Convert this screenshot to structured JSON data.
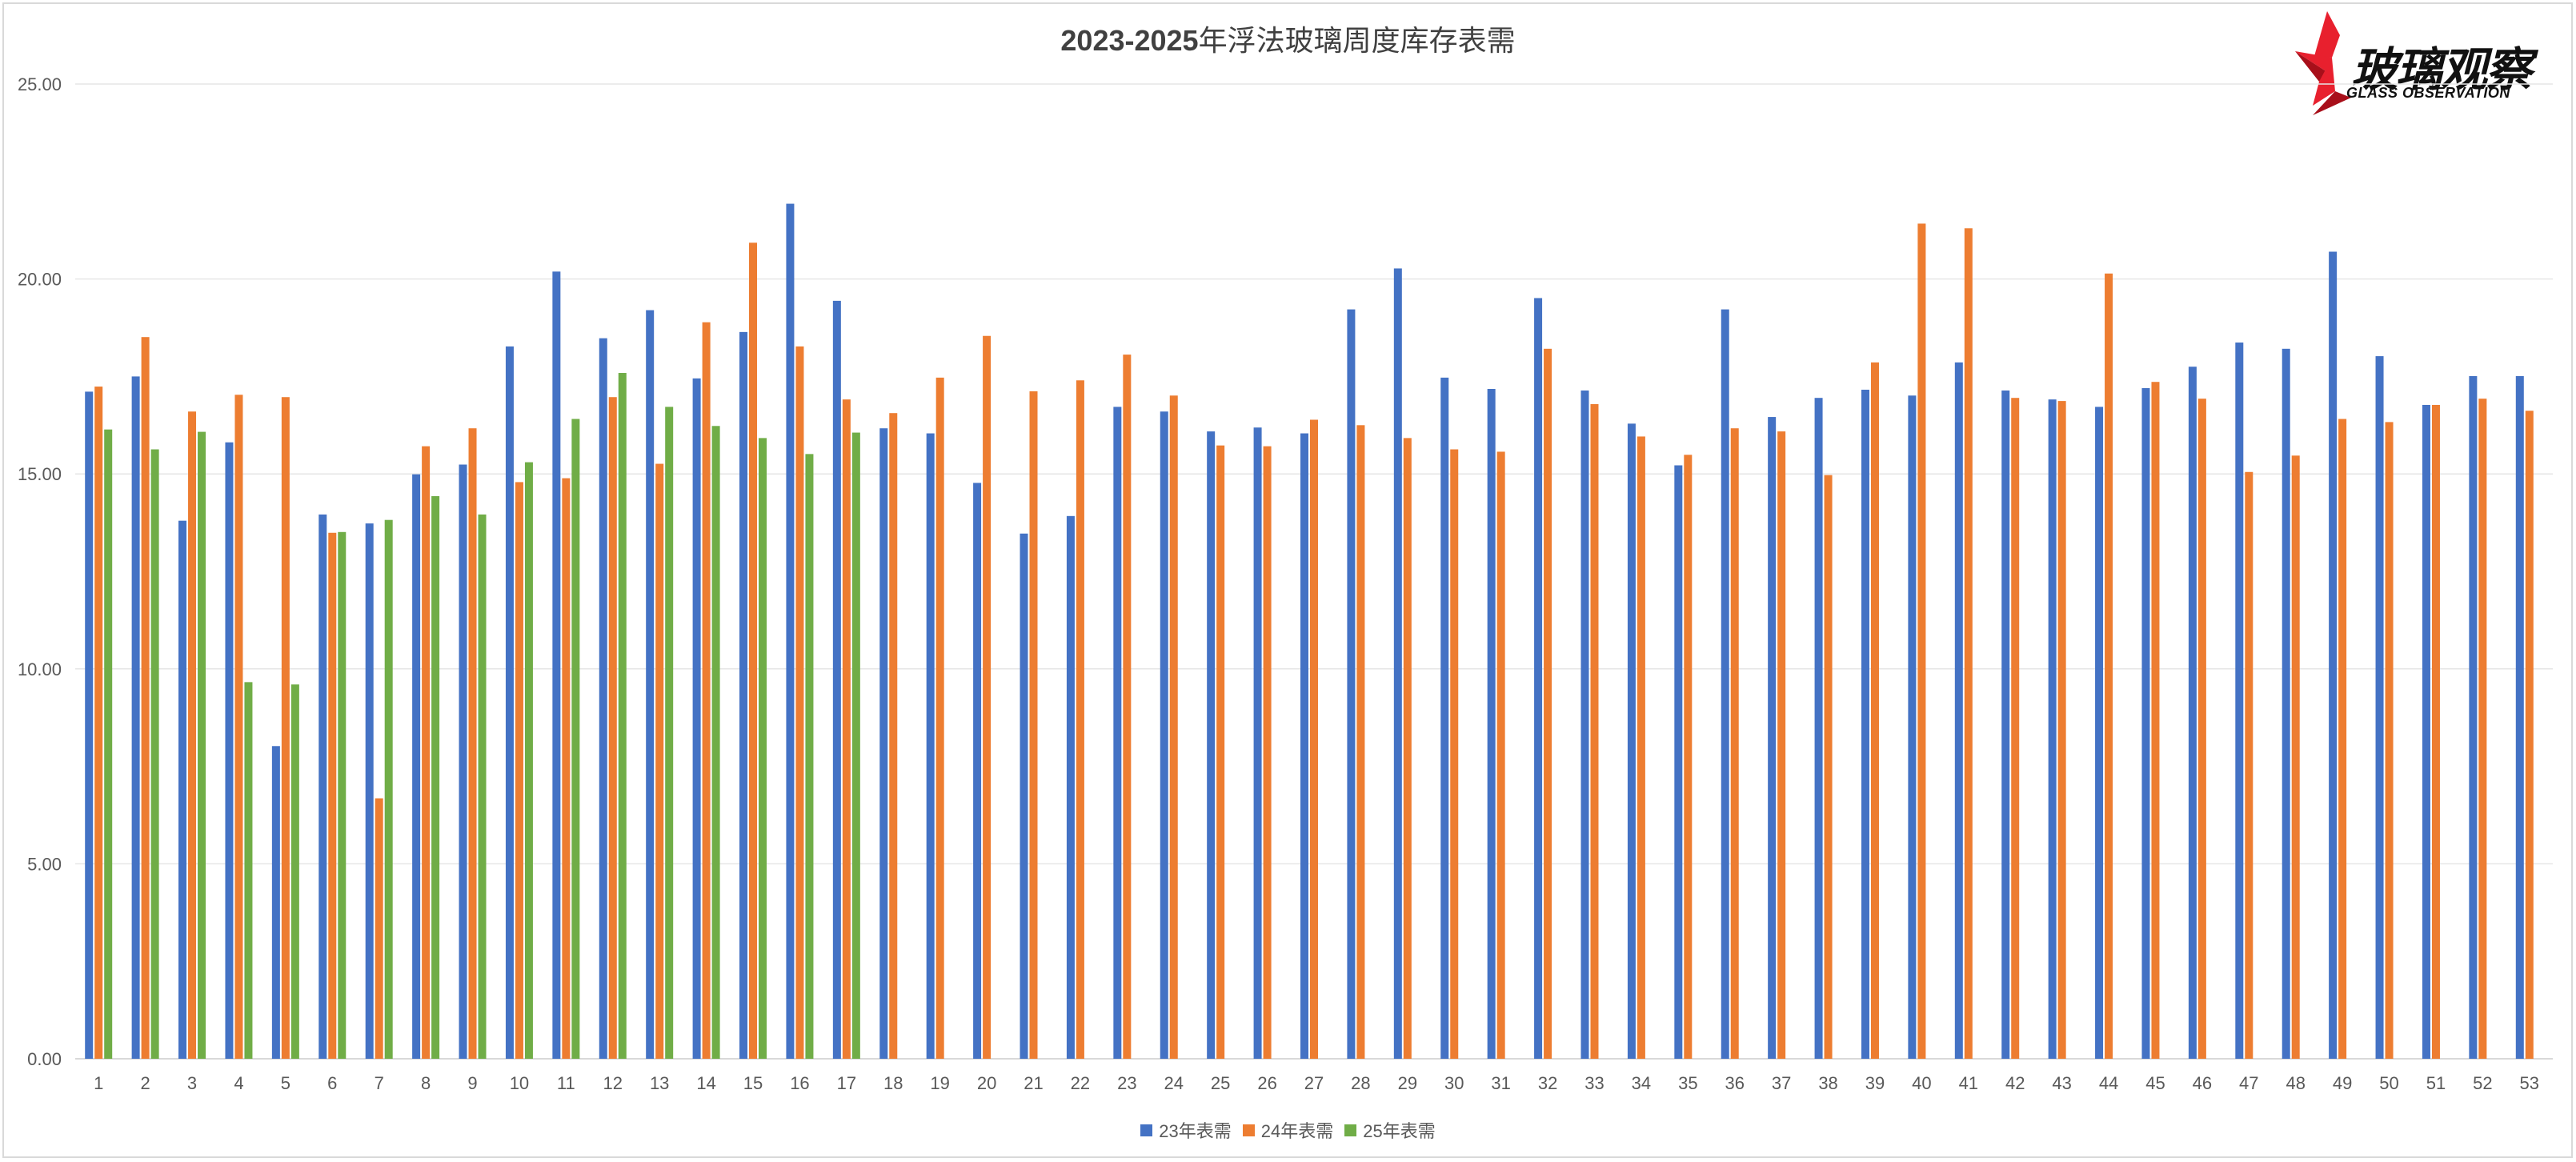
{
  "chart": {
    "title_prefix": "2023-2025",
    "title_suffix": "年浮法玻璃周度库存表需",
    "logo": {
      "cn": "玻璃观察",
      "en": "GLASS OBSERVATION"
    }
  },
  "colors": {
    "s23": "#4472c4",
    "s24": "#ed7d31",
    "s25": "#70ad47",
    "grid": "#e6e6e6",
    "axis_text": "#595959"
  },
  "chart_data": {
    "type": "bar",
    "title": "2023-2025年浮法玻璃周度库存表需",
    "xlabel": "",
    "ylabel": "",
    "ylim": [
      0,
      25
    ],
    "yticks": [
      "0.00",
      "5.00",
      "10.00",
      "15.00",
      "20.00",
      "25.00"
    ],
    "grid": true,
    "legend_position": "bottom",
    "categories": [
      "1",
      "2",
      "3",
      "4",
      "5",
      "6",
      "7",
      "8",
      "9",
      "10",
      "11",
      "12",
      "13",
      "14",
      "15",
      "16",
      "17",
      "18",
      "19",
      "20",
      "21",
      "22",
      "23",
      "24",
      "25",
      "26",
      "27",
      "28",
      "29",
      "30",
      "31",
      "32",
      "33",
      "34",
      "35",
      "36",
      "37",
      "38",
      "39",
      "40",
      "41",
      "42",
      "43",
      "44",
      "45",
      "46",
      "47",
      "48",
      "49",
      "50",
      "51",
      "52",
      "53"
    ],
    "series": [
      {
        "name": "23年表需",
        "color": "#4472c4",
        "values": [
          17.11,
          17.5,
          13.8,
          15.81,
          8.02,
          13.96,
          13.73,
          14.99,
          15.24,
          18.27,
          20.19,
          18.48,
          19.2,
          17.45,
          18.64,
          21.93,
          19.44,
          16.17,
          16.04,
          14.77,
          13.47,
          13.92,
          16.72,
          16.6,
          16.09,
          16.19,
          16.04,
          19.22,
          20.27,
          17.47,
          17.18,
          19.51,
          17.14,
          16.29,
          15.22,
          19.22,
          16.46,
          16.95,
          17.16,
          17.01,
          17.86,
          17.14,
          16.91,
          16.72,
          17.2,
          17.75,
          18.37,
          18.21,
          20.7,
          18.02,
          16.77,
          17.51,
          17.51
        ]
      },
      {
        "name": "24年表需",
        "color": "#ed7d31",
        "values": [
          17.24,
          18.51,
          16.6,
          17.03,
          16.97,
          13.49,
          6.68,
          15.71,
          16.17,
          14.79,
          14.89,
          16.97,
          15.26,
          18.89,
          20.93,
          18.27,
          16.91,
          16.56,
          17.47,
          18.54,
          17.12,
          17.4,
          18.06,
          17.01,
          15.73,
          15.71,
          16.39,
          16.25,
          15.92,
          15.63,
          15.57,
          18.21,
          16.79,
          15.96,
          15.49,
          16.17,
          16.09,
          14.97,
          17.86,
          21.42,
          21.3,
          16.95,
          16.87,
          20.14,
          17.36,
          16.93,
          15.05,
          15.47,
          16.41,
          16.33,
          16.77,
          16.93,
          16.62
        ]
      },
      {
        "name": "25年表需",
        "color": "#70ad47",
        "values": [
          16.14,
          15.63,
          16.08,
          9.66,
          9.6,
          13.51,
          13.82,
          14.43,
          13.96,
          15.3,
          16.41,
          17.59,
          16.72,
          16.23,
          15.92,
          15.51,
          16.06
        ]
      }
    ]
  }
}
